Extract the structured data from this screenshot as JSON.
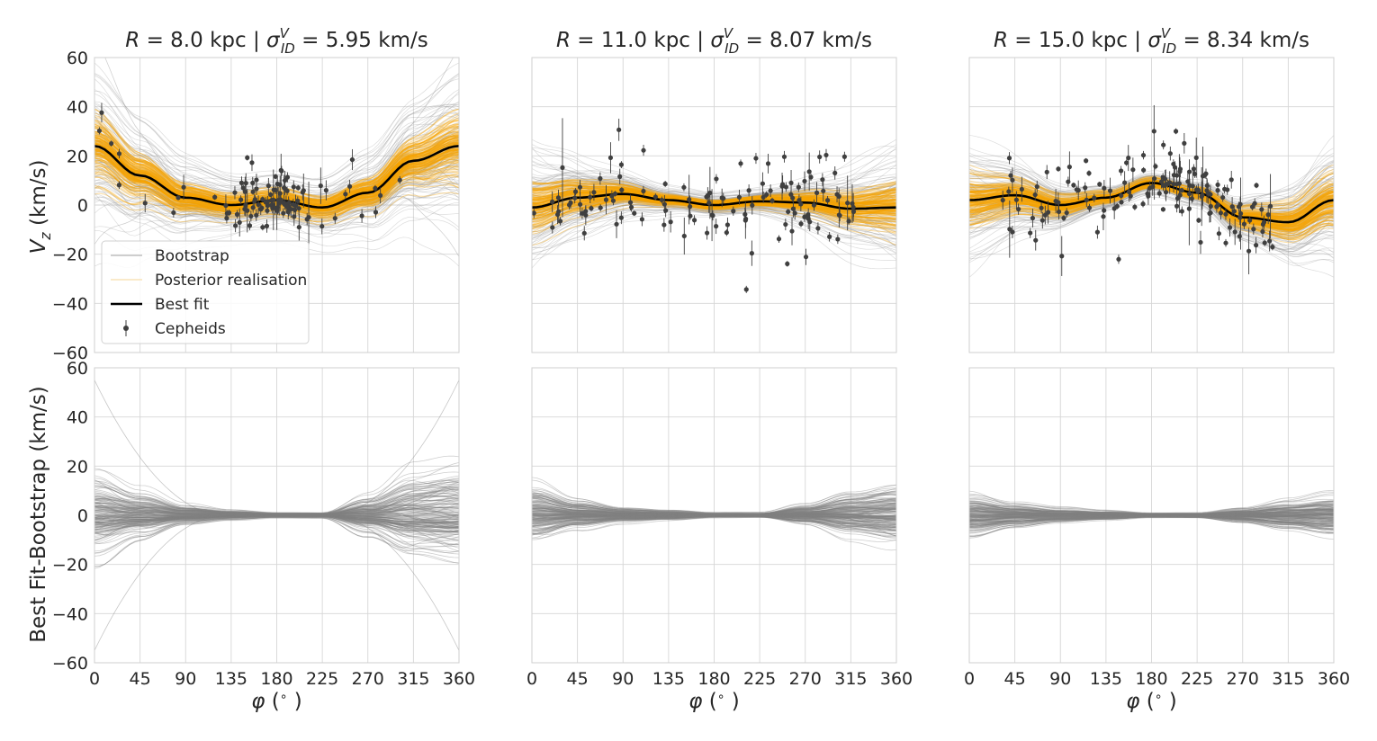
{
  "chart_data": [
    {
      "type": "line",
      "panel": "top-left",
      "title_parts": {
        "r_label": "R",
        "r_value": "8.0 kpc",
        "sep": "|",
        "sigma_symbol": "σ",
        "sigma_sup": "V",
        "sigma_sub": "ID",
        "sigma_value": "5.95 km/s"
      },
      "ylabel": "V_z (km/s)",
      "xlim": [
        0,
        360
      ],
      "ylim": [
        -60,
        60
      ],
      "best_fit": {
        "name": "Best fit",
        "x": [
          0,
          45,
          90,
          135,
          180,
          225,
          270,
          315,
          360
        ],
        "y": [
          24,
          12,
          3,
          0,
          2,
          -1,
          5,
          18,
          24
        ]
      },
      "cepheid_count": 110
    },
    {
      "type": "line",
      "panel": "top-middle",
      "title_parts": {
        "r_label": "R",
        "r_value": "11.0 kpc",
        "sep": "|",
        "sigma_symbol": "σ",
        "sigma_sup": "V",
        "sigma_sub": "ID",
        "sigma_value": "8.07 km/s"
      },
      "xlim": [
        0,
        360
      ],
      "ylim": [
        -60,
        60
      ],
      "best_fit": {
        "name": "Best fit",
        "x": [
          0,
          45,
          90,
          135,
          180,
          225,
          270,
          315,
          360
        ],
        "y": [
          -1,
          3,
          4.5,
          2,
          0,
          1.5,
          1,
          -1.5,
          -1
        ]
      },
      "cepheid_count": 130
    },
    {
      "type": "line",
      "panel": "top-right",
      "title_parts": {
        "r_label": "R",
        "r_value": "15.0 kpc",
        "sep": "|",
        "sigma_symbol": "σ",
        "sigma_sup": "V",
        "sigma_sub": "ID",
        "sigma_value": "8.34 km/s"
      },
      "xlim": [
        0,
        360
      ],
      "ylim": [
        -60,
        60
      ],
      "best_fit": {
        "name": "Best fit",
        "x": [
          0,
          45,
          90,
          135,
          180,
          225,
          270,
          315,
          360
        ],
        "y": [
          2,
          4,
          0,
          3,
          9,
          5,
          -5,
          -7,
          2
        ]
      },
      "cepheid_count": 160
    },
    {
      "type": "line",
      "panel": "bottom-left",
      "ylabel": "Best Fit-Bootstrap (km/s)",
      "xlabel": "φ (°)",
      "xlim": [
        0,
        360
      ],
      "ylim": [
        -60,
        60
      ],
      "residual_amplitude": {
        "x": [
          0,
          45,
          90,
          135,
          180,
          225,
          270,
          315,
          360
        ],
        "spread": [
          18,
          10,
          4,
          2,
          1,
          1,
          8,
          17,
          20
        ]
      }
    },
    {
      "type": "line",
      "panel": "bottom-middle",
      "xlabel": "φ (°)",
      "xlim": [
        0,
        360
      ],
      "ylim": [
        -60,
        60
      ],
      "residual_amplitude": {
        "x": [
          0,
          45,
          90,
          135,
          180,
          225,
          270,
          315,
          360
        ],
        "spread": [
          12,
          6,
          3,
          2,
          1,
          1,
          4,
          9,
          12
        ]
      }
    },
    {
      "type": "line",
      "panel": "bottom-right",
      "xlabel": "φ (°)",
      "xlim": [
        0,
        360
      ],
      "ylim": [
        -60,
        60
      ],
      "residual_amplitude": {
        "x": [
          0,
          45,
          90,
          135,
          180,
          225,
          270,
          315,
          360
        ],
        "spread": [
          9,
          5,
          3,
          2,
          1,
          1,
          3,
          6,
          9
        ]
      }
    }
  ],
  "x_ticks": [
    "0",
    "45",
    "90",
    "135",
    "180",
    "225",
    "270",
    "315",
    "360"
  ],
  "y_ticks": [
    "−60",
    "−40",
    "−20",
    "0",
    "20",
    "40",
    "60"
  ],
  "x_tick_values": [
    0,
    45,
    90,
    135,
    180,
    225,
    270,
    315,
    360
  ],
  "y_tick_values": [
    -60,
    -40,
    -20,
    0,
    20,
    40,
    60
  ],
  "top_ylabel_parts": {
    "symbol": "V",
    "sub": "z",
    "unit": " (km/s)"
  },
  "bottom_ylabel": "Best Fit-Bootstrap (km/s)",
  "xlabel_parts": {
    "symbol": "φ",
    "unit_open": " (",
    "deg": "∘",
    "unit_close": " )"
  },
  "legend": {
    "position": "lower-left",
    "items": [
      {
        "label": "Bootstrap",
        "color": "#b0b0b0"
      },
      {
        "label": "Posterior realisation",
        "color": "#f8deaa"
      },
      {
        "label": "Best fit",
        "color": "#000000"
      },
      {
        "label": "Cepheids",
        "color": "#3f3f3f"
      }
    ]
  },
  "colors": {
    "bootstrap": "#9a9a9a",
    "posterior": "#f5a300",
    "best_fit": "#000000",
    "cepheid": "#3f3f3f",
    "residual": "#808080",
    "grid": "#d6d6d6",
    "frame": "#cfcfcf"
  }
}
